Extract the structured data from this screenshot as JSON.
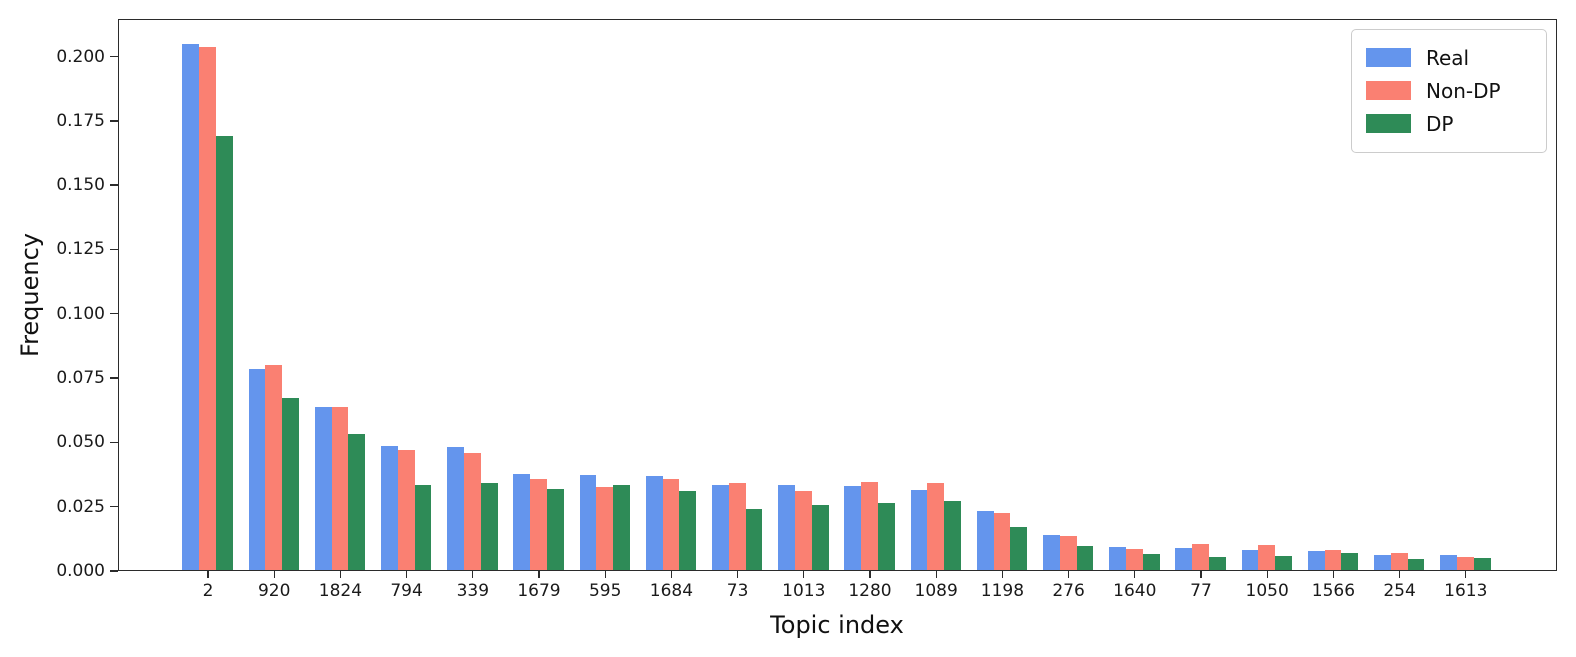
{
  "figure": {
    "background": "#ffffff",
    "spine_color": "#2b2b2b"
  },
  "chart_data": {
    "type": "bar",
    "title": "",
    "xlabel": "Topic index",
    "ylabel": "Frequency",
    "grid": false,
    "legend_position": "upper right",
    "ylim": [
      0,
      0.2146
    ],
    "yticks": {
      "values": [
        0.0,
        0.025,
        0.05,
        0.075,
        0.1,
        0.125,
        0.15,
        0.175,
        0.2
      ],
      "labels": [
        "0.000",
        "0.025",
        "0.050",
        "0.075",
        "0.100",
        "0.125",
        "0.150",
        "0.175",
        "0.200"
      ]
    },
    "categories": [
      "2",
      "920",
      "1824",
      "794",
      "339",
      "1679",
      "595",
      "1684",
      "73",
      "1013",
      "1280",
      "1089",
      "1198",
      "276",
      "1640",
      "77",
      "1050",
      "1566",
      "254",
      "1613"
    ],
    "series": [
      {
        "name": "Real",
        "color": "#6495ED",
        "values": [
          0.2046,
          0.0782,
          0.0634,
          0.0484,
          0.048,
          0.0374,
          0.037,
          0.0364,
          0.033,
          0.0329,
          0.0328,
          0.0313,
          0.0229,
          0.0136,
          0.0091,
          0.0085,
          0.0078,
          0.0072,
          0.0057,
          0.0058
        ]
      },
      {
        "name": "Non-DP",
        "color": "#FA8072",
        "values": [
          0.2033,
          0.0798,
          0.0634,
          0.0465,
          0.0455,
          0.0355,
          0.0323,
          0.0355,
          0.0338,
          0.0307,
          0.0341,
          0.0338,
          0.0222,
          0.0131,
          0.008,
          0.0103,
          0.0097,
          0.0079,
          0.0066,
          0.0051
        ]
      },
      {
        "name": "DP",
        "color": "#2E8B57",
        "values": [
          0.1689,
          0.067,
          0.053,
          0.0329,
          0.0338,
          0.0316,
          0.0329,
          0.0309,
          0.0238,
          0.0251,
          0.0259,
          0.0267,
          0.0167,
          0.0092,
          0.0062,
          0.0049,
          0.0054,
          0.0068,
          0.0044,
          0.0047
        ]
      }
    ]
  }
}
